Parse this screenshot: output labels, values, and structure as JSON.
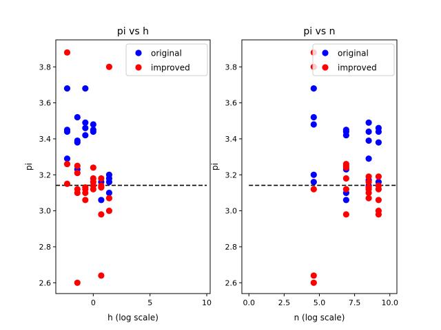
{
  "chart_data": [
    {
      "type": "scatter",
      "title": "pi vs h",
      "xlabel": "h (log scale)",
      "ylabel": "pi",
      "xlim": [
        -3.3,
        10.3
      ],
      "ylim": [
        2.54,
        3.95
      ],
      "xticks": [
        0,
        5,
        10
      ],
      "xtick_labels": [
        "0",
        "5",
        "10"
      ],
      "yticks": [
        2.6,
        2.8,
        3.0,
        3.2,
        3.4,
        3.6,
        3.8
      ],
      "ytick_labels": [
        "2.6",
        "2.8",
        "3.0",
        "3.2",
        "3.4",
        "3.6",
        "3.8"
      ],
      "reference_y": 3.1416,
      "reference_x_range": [
        -3.3,
        10.0
      ],
      "legend_position": "top-right",
      "series": [
        {
          "name": "original",
          "color": "#0000ff",
          "x": [
            -2.3,
            -2.3,
            -2.3,
            -2.3,
            -1.4,
            -1.4,
            -1.4,
            -1.4,
            -0.7,
            -0.7,
            -0.7,
            -0.7,
            0.0,
            0.0,
            0.0,
            0.7,
            0.7,
            1.4,
            1.4,
            1.4,
            1.4
          ],
          "y": [
            3.68,
            3.44,
            3.45,
            3.29,
            3.52,
            3.38,
            3.39,
            3.23,
            3.68,
            3.49,
            3.46,
            3.42,
            3.48,
            3.45,
            3.44,
            3.16,
            3.06,
            3.2,
            3.18,
            3.16,
            3.1
          ]
        },
        {
          "name": "improved",
          "color": "#ff0000",
          "x": [
            -2.3,
            -2.3,
            -2.3,
            -1.4,
            -1.4,
            -1.4,
            -1.4,
            -1.4,
            -0.7,
            -0.7,
            -0.7,
            -0.7,
            0.0,
            0.0,
            0.0,
            0.0,
            0.0,
            0.7,
            0.7,
            0.7,
            0.7,
            0.7,
            1.4,
            1.4,
            1.4
          ],
          "y": [
            3.88,
            3.26,
            3.15,
            3.25,
            3.12,
            3.1,
            3.21,
            2.6,
            3.13,
            3.12,
            3.1,
            3.06,
            3.24,
            3.18,
            3.16,
            3.14,
            3.12,
            3.18,
            3.14,
            3.13,
            2.98,
            2.64,
            3.8,
            3.07,
            3.0
          ]
        }
      ]
    },
    {
      "type": "scatter",
      "title": "pi vs n",
      "xlabel": "n (log scale)",
      "ylabel": "pi",
      "xlim": [
        -0.5,
        10.5
      ],
      "ylim": [
        2.54,
        3.95
      ],
      "xticks": [
        0.0,
        2.5,
        5.0,
        7.5,
        10.0
      ],
      "xtick_labels": [
        "0.0",
        "2.5",
        "5.0",
        "7.5",
        "10.0"
      ],
      "yticks": [
        2.6,
        2.8,
        3.0,
        3.2,
        3.4,
        3.6,
        3.8
      ],
      "ytick_labels": [
        "2.6",
        "2.8",
        "3.0",
        "3.2",
        "3.4",
        "3.6",
        "3.8"
      ],
      "reference_y": 3.1416,
      "reference_x_range": [
        0.0,
        10.5
      ],
      "legend_position": "top-right",
      "series": [
        {
          "name": "original",
          "color": "#0000ff",
          "x": [
            4.6,
            4.6,
            4.6,
            4.6,
            4.6,
            6.9,
            6.9,
            6.9,
            6.9,
            6.9,
            6.9,
            8.5,
            8.5,
            8.5,
            8.5,
            8.5,
            8.5,
            9.2,
            9.2,
            9.2,
            9.2
          ],
          "y": [
            3.68,
            3.52,
            3.48,
            3.2,
            3.16,
            3.45,
            3.44,
            3.42,
            3.23,
            3.1,
            3.06,
            3.49,
            3.44,
            3.39,
            3.29,
            3.17,
            3.14,
            3.46,
            3.44,
            3.38,
            3.16
          ]
        },
        {
          "name": "improved",
          "color": "#ff0000",
          "x": [
            4.6,
            4.6,
            4.6,
            4.6,
            4.6,
            6.9,
            6.9,
            6.9,
            6.9,
            6.9,
            6.9,
            8.5,
            8.5,
            8.5,
            8.5,
            8.5,
            8.5,
            9.2,
            9.2,
            9.2,
            9.2,
            9.2,
            9.2
          ],
          "y": [
            3.88,
            3.8,
            3.12,
            2.64,
            2.6,
            3.26,
            3.25,
            3.24,
            3.18,
            3.12,
            2.98,
            3.19,
            3.16,
            3.13,
            3.12,
            3.1,
            3.07,
            3.19,
            3.14,
            3.12,
            3.06,
            3.0,
            2.98
          ]
        }
      ]
    }
  ]
}
